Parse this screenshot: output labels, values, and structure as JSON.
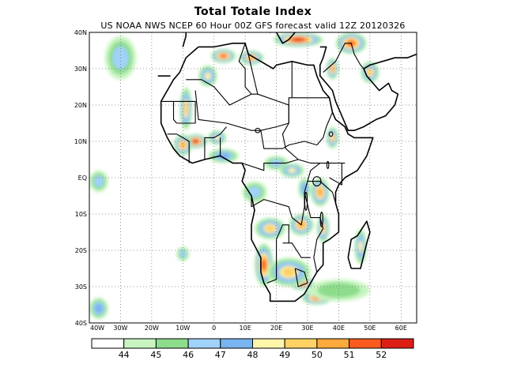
{
  "title": "Total Totale Index",
  "subtitle": "US NOAA NWS NCEP 60 Hour 00Z GFS forecast valid 12Z 20120326",
  "map": {
    "projection": "lat-lon",
    "extent": {
      "lon": [
        -40,
        65
      ],
      "lat": [
        -40,
        40
      ]
    },
    "grid": true,
    "lat_labels": [
      "40N",
      "30N",
      "20N",
      "10N",
      "EQ",
      "10S",
      "20S",
      "30S",
      "40S"
    ],
    "lon_labels": [
      "40W",
      "30W",
      "20W",
      "10W",
      "0",
      "10E",
      "20E",
      "30E",
      "40E",
      "50E",
      "60E"
    ]
  },
  "colorbar": {
    "colors": [
      "#ffffff",
      "#c8f5c0",
      "#8cdc8c",
      "#a0d2fa",
      "#78b4f0",
      "#fff5aa",
      "#ffd264",
      "#ffaa3c",
      "#fa5a1e",
      "#dc1e14"
    ],
    "labels": [
      "44",
      "45",
      "46",
      "47",
      "48",
      "49",
      "50",
      "51",
      "52"
    ]
  },
  "fields": [
    {
      "level": 8,
      "lon": 3,
      "lat": 33.5,
      "rlon": 4,
      "rlat": 2
    },
    {
      "level": 7,
      "lon": 12,
      "lat": 33,
      "rlon": 4,
      "rlat": 2
    },
    {
      "level": 5,
      "lon": -2,
      "lat": 28,
      "rlon": 3,
      "rlat": 3
    },
    {
      "level": 9,
      "lon": 27,
      "lat": 38,
      "rlon": 8,
      "rlat": 2
    },
    {
      "level": 8,
      "lon": 44,
      "lat": 37,
      "rlon": 5,
      "rlat": 3
    },
    {
      "level": 7,
      "lon": 38,
      "lat": 30,
      "rlon": 2,
      "rlat": 3
    },
    {
      "level": 6,
      "lon": 50,
      "lat": 29,
      "rlon": 3,
      "rlat": 3
    },
    {
      "level": 6,
      "lon": -9,
      "lat": 19,
      "rlon": 2,
      "rlat": 6
    },
    {
      "level": 9,
      "lon": -6,
      "lat": 10,
      "rlon": 4,
      "rlat": 2
    },
    {
      "level": 7,
      "lon": -10,
      "lat": 9,
      "rlon": 3,
      "rlat": 3
    },
    {
      "level": 5,
      "lon": 1,
      "lat": 11,
      "rlon": 3,
      "rlat": 2
    },
    {
      "level": 4,
      "lon": 3,
      "lat": 6,
      "rlon": 5,
      "rlat": 2
    },
    {
      "level": 3,
      "lon": 20,
      "lat": 4,
      "rlon": 4,
      "rlat": 2
    },
    {
      "level": 5,
      "lon": 25,
      "lat": 2,
      "rlon": 4,
      "rlat": 2
    },
    {
      "level": 6,
      "lon": 38,
      "lat": 11,
      "rlon": 2,
      "rlat": 3
    },
    {
      "level": 7,
      "lon": 34,
      "lat": -4,
      "rlon": 3,
      "rlat": 4
    },
    {
      "level": 4,
      "lon": 29,
      "lat": -3,
      "rlon": 2,
      "rlat": 3
    },
    {
      "level": 3,
      "lon": 13,
      "lat": -4,
      "rlon": 4,
      "rlat": 3
    },
    {
      "level": 6,
      "lon": 18,
      "lat": -14,
      "rlon": 5,
      "rlat": 3
    },
    {
      "level": 7,
      "lon": 28,
      "lat": -13,
      "rlon": 4,
      "rlat": 3
    },
    {
      "level": 6,
      "lon": 35,
      "lat": -14,
      "rlon": 2,
      "rlat": 4
    },
    {
      "level": 5,
      "lon": 47,
      "lat": -19,
      "rlon": 2,
      "rlat": 5
    },
    {
      "level": 8,
      "lon": 16,
      "lat": -24,
      "rlon": 3,
      "rlat": 6
    },
    {
      "level": 9,
      "lon": 28,
      "lat": -29,
      "rlon": 4,
      "rlat": 2
    },
    {
      "level": 8,
      "lon": 33,
      "lat": -33,
      "rlon": 5,
      "rlat": 2
    },
    {
      "level": 6,
      "lon": 24,
      "lat": -26,
      "rlon": 7,
      "rlat": 4
    },
    {
      "level": 3,
      "lon": -10,
      "lat": -21,
      "rlon": 2,
      "rlat": 2
    },
    {
      "level": 3,
      "lon": -30,
      "lat": 33,
      "rlon": 5,
      "rlat": 6
    },
    {
      "level": 4,
      "lon": -37,
      "lat": -36,
      "rlon": 3,
      "rlat": 3
    },
    {
      "level": 3,
      "lon": -37,
      "lat": -1,
      "rlon": 3,
      "rlat": 3
    },
    {
      "level": 2,
      "lon": 40,
      "lat": -31,
      "rlon": 10,
      "rlat": 3
    }
  ],
  "coastlines": [
    [
      [
        -5,
        36
      ],
      [
        -9,
        33
      ],
      [
        -11,
        29
      ],
      [
        -13,
        27
      ],
      [
        -17,
        21
      ],
      [
        -17,
        15
      ],
      [
        -15,
        11
      ],
      [
        -13,
        8
      ],
      [
        -11,
        6
      ],
      [
        -7,
        4
      ],
      [
        -3,
        5
      ],
      [
        2,
        6
      ],
      [
        6,
        4
      ],
      [
        9,
        4
      ],
      [
        10,
        2
      ],
      [
        9,
        -1
      ],
      [
        12,
        -5
      ],
      [
        13,
        -9
      ],
      [
        12,
        -13
      ],
      [
        12,
        -17
      ],
      [
        15,
        -22
      ],
      [
        15,
        -26
      ],
      [
        16,
        -29
      ],
      [
        18,
        -32
      ],
      [
        18,
        -34
      ],
      [
        22,
        -34
      ],
      [
        26,
        -34
      ],
      [
        29,
        -32
      ],
      [
        31,
        -29
      ],
      [
        33,
        -26
      ],
      [
        35,
        -24
      ],
      [
        35,
        -21
      ],
      [
        35,
        -18
      ],
      [
        37,
        -17
      ],
      [
        40,
        -15
      ],
      [
        40,
        -10
      ],
      [
        39,
        -7
      ],
      [
        39,
        -4
      ],
      [
        40,
        -2
      ],
      [
        42,
        0
      ],
      [
        46,
        2
      ],
      [
        49,
        6
      ],
      [
        51,
        11
      ],
      [
        49,
        11
      ],
      [
        45,
        11
      ],
      [
        43,
        12
      ],
      [
        42,
        14
      ],
      [
        39,
        16
      ],
      [
        38,
        18
      ],
      [
        37,
        22
      ],
      [
        35,
        24
      ],
      [
        33,
        28
      ],
      [
        32,
        31
      ],
      [
        30,
        31
      ],
      [
        25,
        32
      ],
      [
        20,
        31
      ],
      [
        19,
        30
      ],
      [
        15,
        32
      ],
      [
        11,
        34
      ],
      [
        10,
        37
      ],
      [
        6,
        37
      ],
      [
        0,
        36
      ],
      [
        -5,
        36
      ]
    ],
    [
      [
        44,
        -25
      ],
      [
        47,
        -25
      ],
      [
        49,
        -18
      ],
      [
        50,
        -15
      ],
      [
        49,
        -12
      ],
      [
        46,
        -16
      ],
      [
        44,
        -17
      ],
      [
        43,
        -22
      ],
      [
        44,
        -25
      ]
    ],
    [
      [
        -10,
        36
      ],
      [
        -9,
        39
      ],
      [
        -9,
        43
      ],
      [
        -2,
        43
      ],
      [
        3,
        42
      ],
      [
        3,
        43
      ],
      [
        7,
        43
      ],
      [
        10,
        44
      ],
      [
        13,
        45
      ],
      [
        16,
        41
      ],
      [
        18,
        40
      ],
      [
        19,
        42
      ],
      [
        20,
        40
      ],
      [
        22,
        37
      ],
      [
        24,
        38
      ],
      [
        26,
        40
      ],
      [
        29,
        41
      ],
      [
        33,
        42
      ],
      [
        36,
        41
      ],
      [
        40,
        41
      ],
      [
        41,
        40
      ]
    ],
    [
      [
        34,
        36
      ],
      [
        36,
        36
      ],
      [
        35,
        33
      ],
      [
        34,
        31
      ],
      [
        34,
        28
      ],
      [
        36,
        26
      ],
      [
        38,
        24
      ],
      [
        39,
        21
      ],
      [
        41,
        17
      ],
      [
        43,
        13
      ],
      [
        45,
        13
      ],
      [
        48,
        14
      ],
      [
        52,
        16
      ],
      [
        55,
        17
      ],
      [
        58,
        20
      ],
      [
        59,
        23
      ],
      [
        57,
        24
      ],
      [
        56,
        26
      ],
      [
        53,
        24
      ],
      [
        51,
        26
      ],
      [
        49,
        28
      ],
      [
        48,
        30
      ],
      [
        50,
        31
      ],
      [
        54,
        32
      ],
      [
        58,
        33
      ],
      [
        62,
        33
      ],
      [
        65,
        34
      ]
    ],
    [
      [
        -18,
        28
      ],
      [
        -14,
        28
      ]
    ]
  ],
  "borders": [
    [
      [
        -9,
        27
      ],
      [
        -4,
        27
      ],
      [
        0,
        25
      ],
      [
        5,
        20
      ],
      [
        12,
        23
      ],
      [
        14,
        23
      ]
    ],
    [
      [
        -17,
        21
      ],
      [
        -13,
        21
      ],
      [
        -13,
        16
      ],
      [
        -12,
        15
      ]
    ],
    [
      [
        -13,
        21
      ],
      [
        -6,
        21
      ],
      [
        -6,
        15
      ],
      [
        -12,
        15
      ]
    ],
    [
      [
        -6,
        24
      ],
      [
        -5,
        16
      ],
      [
        4,
        15
      ],
      [
        12,
        13
      ],
      [
        15,
        13
      ],
      [
        16,
        8
      ],
      [
        22,
        8
      ]
    ],
    [
      [
        10,
        37
      ],
      [
        8,
        32
      ],
      [
        10,
        30
      ],
      [
        10,
        25
      ],
      [
        12,
        23
      ]
    ],
    [
      [
        11,
        34
      ],
      [
        14,
        23
      ],
      [
        24,
        20
      ],
      [
        24,
        22
      ],
      [
        25,
        22
      ],
      [
        25,
        32
      ]
    ],
    [
      [
        24,
        20
      ],
      [
        24,
        15
      ],
      [
        22,
        12
      ],
      [
        23,
        8
      ],
      [
        27,
        5
      ],
      [
        31,
        4
      ],
      [
        34,
        4
      ],
      [
        36,
        4
      ],
      [
        40,
        4
      ],
      [
        42,
        4
      ]
    ],
    [
      [
        25,
        22
      ],
      [
        37,
        22
      ]
    ],
    [
      [
        24,
        15
      ],
      [
        24,
        20
      ]
    ],
    [
      [
        33,
        9
      ],
      [
        35,
        11
      ],
      [
        36,
        14
      ],
      [
        38,
        18
      ]
    ],
    [
      [
        33,
        9
      ],
      [
        29,
        10
      ],
      [
        24,
        9
      ],
      [
        22,
        8
      ]
    ],
    [
      [
        15,
        13
      ],
      [
        20,
        14
      ],
      [
        24,
        15
      ]
    ],
    [
      [
        9,
        4
      ],
      [
        16,
        2
      ],
      [
        16,
        4
      ],
      [
        19,
        4
      ],
      [
        23,
        4
      ],
      [
        27,
        5
      ]
    ],
    [
      [
        12,
        -5
      ],
      [
        12,
        -8
      ],
      [
        16,
        -6
      ],
      [
        24,
        -8
      ],
      [
        25,
        -11
      ],
      [
        28,
        -13
      ],
      [
        29,
        -8
      ],
      [
        29,
        -4
      ],
      [
        30,
        -1
      ],
      [
        31,
        2
      ],
      [
        34,
        4
      ]
    ],
    [
      [
        30,
        -1
      ],
      [
        34,
        -1
      ],
      [
        38,
        -4
      ],
      [
        39,
        -7
      ]
    ],
    [
      [
        29,
        -4
      ],
      [
        31,
        -11
      ],
      [
        34,
        -11
      ],
      [
        35,
        -14
      ],
      [
        33,
        -17
      ],
      [
        32,
        -22
      ],
      [
        33,
        -26
      ]
    ],
    [
      [
        22,
        -18
      ],
      [
        25,
        -18
      ],
      [
        28,
        -22
      ],
      [
        31,
        -22
      ]
    ],
    [
      [
        20,
        -17
      ],
      [
        22,
        -13
      ],
      [
        24,
        -13
      ],
      [
        24,
        -18
      ]
    ],
    [
      [
        20,
        -17
      ],
      [
        20,
        -22
      ],
      [
        20,
        -28
      ],
      [
        17,
        -29
      ]
    ],
    [
      [
        26,
        -25
      ],
      [
        29,
        -26
      ],
      [
        30,
        -29
      ],
      [
        27,
        -30
      ],
      [
        26,
        -25
      ]
    ],
    [
      [
        -8,
        4
      ],
      [
        -8,
        10
      ],
      [
        -12,
        12
      ],
      [
        -15,
        12
      ]
    ],
    [
      [
        -3,
        5
      ],
      [
        -3,
        11
      ],
      [
        0,
        11
      ],
      [
        2,
        12
      ],
      [
        4,
        14
      ]
    ],
    [
      [
        2,
        6
      ],
      [
        2,
        11
      ]
    ],
    [
      [
        37,
        0
      ],
      [
        41,
        -2
      ],
      [
        41,
        4
      ]
    ],
    [
      [
        35,
        29
      ],
      [
        39,
        32
      ],
      [
        42,
        37
      ],
      [
        44,
        37
      ],
      [
        45,
        34
      ],
      [
        47,
        31
      ],
      [
        48,
        30
      ]
    ],
    [
      [
        35,
        33
      ],
      [
        36,
        36
      ]
    ]
  ],
  "lakes": [
    {
      "lon": 33,
      "lat": -1,
      "rlon": 1.3,
      "rlat": 1.3
    },
    {
      "lon": 29.5,
      "lat": -6.5,
      "rlon": 0.4,
      "rlat": 2.5
    },
    {
      "lon": 34.5,
      "lat": -11.5,
      "rlon": 0.4,
      "rlat": 2
    },
    {
      "lon": 14,
      "lat": 13,
      "rlon": 0.8,
      "rlat": 0.6
    },
    {
      "lon": 37.5,
      "lat": 12,
      "rlon": 0.6,
      "rlat": 0.6
    },
    {
      "lon": 36.5,
      "lat": 3.5,
      "rlon": 0.3,
      "rlat": 1
    }
  ]
}
